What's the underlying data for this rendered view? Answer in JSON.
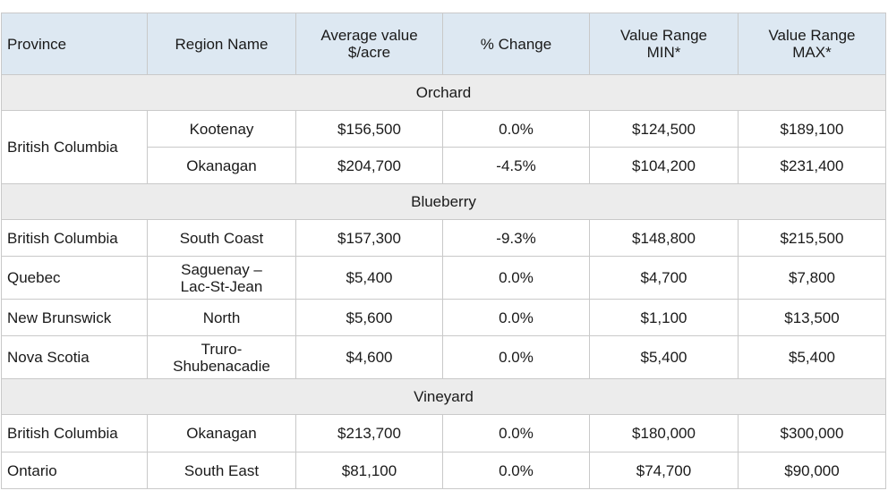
{
  "headers": [
    "Province",
    "Region Name",
    "Average value\n$/acre",
    "% Change",
    "Value Range\nMIN*",
    "Value Range\nMAX*"
  ],
  "sections": [
    {
      "title": "Orchard",
      "rows": [
        {
          "province": "British Columbia",
          "region": "Kootenay",
          "avg": "$156,500",
          "change": "0.0%",
          "min": "$124,500",
          "max": "$189,100"
        },
        {
          "province": "",
          "region": "Okanagan",
          "avg": "$204,700",
          "change": "-4.5%",
          "min": "$104,200",
          "max": "$231,400"
        }
      ]
    },
    {
      "title": "Blueberry",
      "rows": [
        {
          "province": "British Columbia",
          "region": "South Coast",
          "avg": "$157,300",
          "change": "-9.3%",
          "min": "$148,800",
          "max": "$215,500"
        },
        {
          "province": "Quebec",
          "region": "Saguenay –\nLac-St-Jean",
          "avg": "$5,400",
          "change": "0.0%",
          "min": "$4,700",
          "max": "$7,800"
        },
        {
          "province": "New Brunswick",
          "region": "North",
          "avg": "$5,600",
          "change": "0.0%",
          "min": "$1,100",
          "max": "$13,500"
        },
        {
          "province": "Nova Scotia",
          "region": "Truro-\nShubenacadie",
          "avg": "$4,600",
          "change": "0.0%",
          "min": "$5,400",
          "max": "$5,400"
        }
      ]
    },
    {
      "title": "Vineyard",
      "rows": [
        {
          "province": "British Columbia",
          "region": "Okanagan",
          "avg": "$213,700",
          "change": "0.0%",
          "min": "$180,000",
          "max": "$300,000"
        },
        {
          "province": "Ontario",
          "region": "South East",
          "avg": "$81,100",
          "change": "0.0%",
          "min": "$74,700",
          "max": "$90,000"
        }
      ]
    }
  ]
}
